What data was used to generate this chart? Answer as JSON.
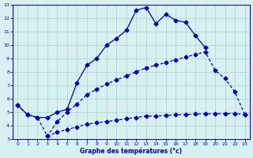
{
  "xlabel": "Graphe des températures (°c)",
  "bg_color": "#d8f0f0",
  "grid_color": "#b0d8d8",
  "line_color": "#0000cc",
  "xlim": [
    -0.5,
    23.5
  ],
  "ylim": [
    3,
    13
  ],
  "xticks": [
    0,
    1,
    2,
    3,
    4,
    5,
    6,
    7,
    8,
    9,
    10,
    11,
    12,
    13,
    14,
    15,
    16,
    17,
    18,
    19,
    20,
    21,
    22,
    23
  ],
  "yticks": [
    3,
    4,
    5,
    6,
    7,
    8,
    9,
    10,
    11,
    12,
    13
  ],
  "line1_x": [
    0,
    1,
    2,
    3,
    4,
    5,
    6,
    7,
    8,
    9,
    10,
    11,
    12,
    13,
    14,
    15,
    16,
    17,
    18,
    19
  ],
  "line1_y": [
    5.5,
    4.8,
    4.6,
    4.6,
    5.0,
    5.2,
    7.2,
    8.5,
    9.0,
    10.0,
    10.5,
    11.1,
    12.6,
    12.8,
    11.6,
    12.3,
    11.85,
    11.7,
    10.7,
    9.8
  ],
  "line2_x": [
    0,
    1,
    2,
    3,
    4,
    5,
    6,
    7,
    8,
    9,
    10,
    11,
    12,
    13,
    14,
    15,
    16,
    17,
    18,
    19,
    20,
    21,
    22,
    23
  ],
  "line2_y": [
    5.5,
    4.8,
    4.6,
    3.2,
    4.3,
    5.0,
    5.6,
    6.3,
    6.7,
    7.1,
    7.4,
    7.7,
    8.0,
    8.3,
    8.5,
    8.7,
    8.9,
    9.1,
    9.3,
    9.5,
    8.1,
    7.5,
    6.5,
    4.8
  ],
  "line3_x": [
    3,
    4,
    5,
    6,
    7,
    8,
    9,
    10,
    11,
    12,
    13,
    14,
    15,
    16,
    17,
    18,
    19,
    20,
    21,
    22,
    23
  ],
  "line3_y": [
    3.2,
    3.5,
    3.7,
    3.9,
    4.1,
    4.2,
    4.3,
    4.4,
    4.5,
    4.6,
    4.7,
    4.7,
    4.75,
    4.8,
    4.82,
    4.85,
    4.87,
    4.88,
    4.89,
    4.9,
    4.8
  ]
}
